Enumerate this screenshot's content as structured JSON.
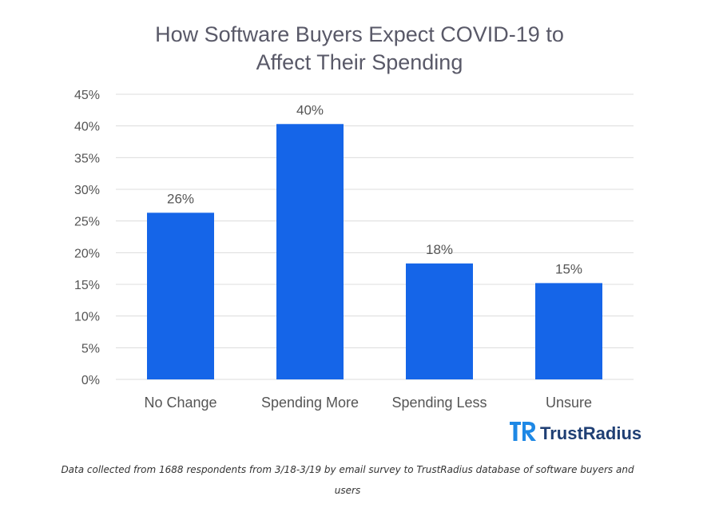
{
  "chart_data": {
    "type": "bar",
    "title_lines": [
      "How Software Buyers Expect COVID-19 to",
      "Affect Their Spending"
    ],
    "categories": [
      "No Change",
      "Spending More",
      "Spending Less",
      "Unsure"
    ],
    "values": [
      26.3,
      40.3,
      18.3,
      15.2
    ],
    "data_labels": [
      "26%",
      "40%",
      "18%",
      "15%"
    ],
    "ylim": [
      0,
      45
    ],
    "yticks": [
      0,
      5,
      10,
      15,
      20,
      25,
      30,
      35,
      40,
      45
    ],
    "ytick_labels": [
      "0%",
      "5%",
      "10%",
      "15%",
      "20%",
      "25%",
      "30%",
      "35%",
      "40%",
      "45%"
    ],
    "xlabel": "",
    "ylabel": "",
    "grid": true,
    "bar_color": "#1565e8"
  },
  "brand": {
    "name": "TrustRadius",
    "logo_icon": "trustradius-logo-icon",
    "mark_color": "#1e88e5",
    "text_color": "#1f3f74"
  },
  "footnote": "Data collected from 1688 respondents from 3/18-3/19 by email survey to TrustRadius database of software buyers and users",
  "colors": {
    "grid": "#dcdcdc",
    "axis_text": "#555555",
    "title": "#595968"
  }
}
